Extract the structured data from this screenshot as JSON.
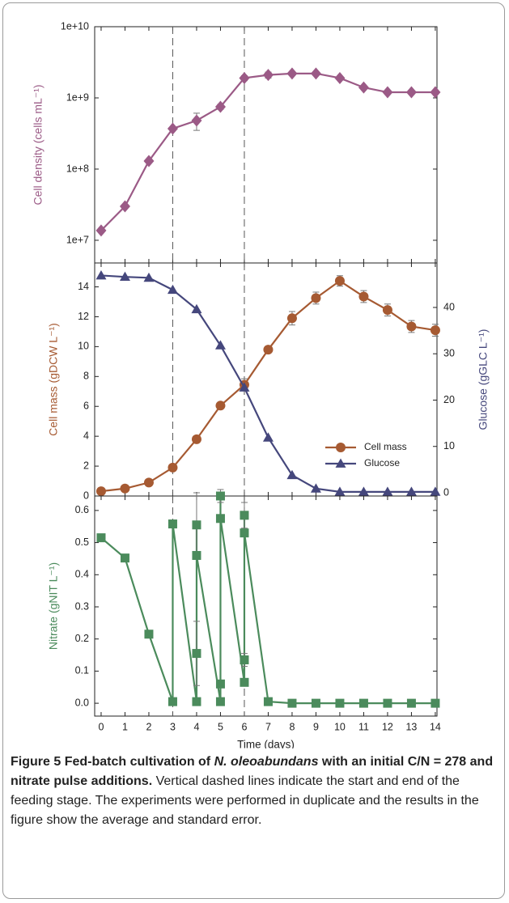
{
  "chart_data": [
    {
      "type": "line",
      "log_y": true,
      "ylabel": "Cell density (cells mL⁻¹)",
      "xlim": [
        -0.27,
        14.07
      ],
      "xticks": [
        0,
        1,
        2,
        3,
        4,
        5,
        6,
        7,
        8,
        9,
        10,
        11,
        12,
        13,
        14
      ],
      "ylim": [
        4800000,
        10000000000
      ],
      "yticks": [
        {
          "value": 10000000,
          "label": "1e+7"
        },
        {
          "value": 100000000,
          "label": "1e+8"
        },
        {
          "value": 1000000000,
          "label": "1e+9"
        },
        {
          "value": 10000000000,
          "label": "1e+10"
        }
      ],
      "vlines": [
        3,
        6
      ],
      "x": [
        0,
        1,
        2,
        3,
        4,
        5,
        6,
        7,
        8,
        9,
        10,
        11,
        12,
        13,
        14
      ],
      "series": [
        {
          "name": "Cell density",
          "color": "#9b5a86",
          "marker": "diamond",
          "values": [
            13700000,
            30000000,
            130000000,
            370000000,
            480000000,
            750000000,
            1900000000,
            2100000000,
            2200000000,
            2200000000,
            1900000000,
            1400000000,
            1200000000,
            1200000000,
            1200000000
          ],
          "errors": [
            null,
            null,
            null,
            null,
            130000000,
            60000000,
            150000000,
            200000000,
            null,
            null,
            null,
            null,
            null,
            null,
            null
          ]
        }
      ]
    },
    {
      "type": "line",
      "ylabel": "Cell mass (gDCW L⁻¹)",
      "y2label": "Glucose (gGLC L⁻¹)",
      "xlim": [
        -0.27,
        14.07
      ],
      "xticks": [
        0,
        1,
        2,
        3,
        4,
        5,
        6,
        7,
        8,
        9,
        10,
        11,
        12,
        13,
        14
      ],
      "ylim": [
        0,
        15.6
      ],
      "yticks": [
        0,
        2,
        4,
        6,
        8,
        10,
        12,
        14
      ],
      "y2lim": [
        -0.7,
        49.6
      ],
      "y2ticks": [
        0,
        10,
        20,
        30,
        40
      ],
      "vlines": [
        3,
        6
      ],
      "legend": "lower right",
      "x": [
        0,
        1,
        2,
        3,
        4,
        5,
        6,
        7,
        8,
        9,
        10,
        11,
        12,
        13,
        14
      ],
      "series": [
        {
          "name": "Cell mass",
          "color": "#a65a32",
          "marker": "circle",
          "values": [
            0.32,
            0.5,
            0.9,
            1.9,
            3.8,
            6.05,
            7.45,
            9.8,
            11.9,
            13.25,
            14.4,
            13.35,
            12.45,
            11.35,
            11.1
          ],
          "errors": [
            null,
            null,
            null,
            null,
            null,
            null,
            0.4,
            null,
            0.45,
            0.4,
            0.35,
            0.4,
            0.4,
            0.4,
            0.4
          ]
        },
        {
          "name": "Glucose",
          "color": "#45477c",
          "marker": "triangle",
          "axis": "y2",
          "values": [
            46.9,
            46.6,
            46.4,
            43.8,
            39.6,
            31.8,
            22.7,
            11.9,
            3.8,
            0.9,
            0.2,
            0.2,
            0.2,
            0.2,
            0.2
          ],
          "errors": [
            null,
            null,
            null,
            null,
            null,
            null,
            null,
            null,
            null,
            null,
            null,
            null,
            null,
            null,
            null
          ]
        }
      ]
    },
    {
      "type": "line",
      "ylabel": "Nitrate (gNIT L⁻¹)",
      "xlabel": "Time (days)",
      "xlim": [
        -0.27,
        14.07
      ],
      "xticks": [
        0,
        1,
        2,
        3,
        4,
        5,
        6,
        7,
        8,
        9,
        10,
        11,
        12,
        13,
        14
      ],
      "ylim": [
        -0.04,
        0.645
      ],
      "yticks": [
        {
          "value": 0,
          "label": "0.0"
        },
        0.1,
        0.2,
        0.3,
        0.4,
        0.5,
        0.6
      ],
      "vlines": [
        3,
        6
      ],
      "x": [
        0,
        1,
        2,
        3,
        3,
        4,
        4,
        4,
        4,
        5,
        5,
        5,
        5,
        6,
        6,
        6,
        6,
        7,
        8,
        9,
        10,
        11,
        12,
        13,
        14
      ],
      "series": [
        {
          "name": "Nitrate",
          "color": "#4b8b5c",
          "marker": "square",
          "values": [
            0.515,
            0.452,
            0.215,
            0.005,
            0.558,
            0.005,
            0.155,
            0.555,
            0.46,
            0.005,
            0.06,
            0.645,
            0.575,
            0.065,
            0.135,
            0.585,
            0.53,
            0.005,
            0,
            0,
            0,
            0,
            0,
            0,
            0
          ],
          "errors": [
            null,
            null,
            null,
            null,
            null,
            null,
            0.1,
            0.1,
            null,
            null,
            null,
            0.02,
            null,
            null,
            0.02,
            0.04,
            null,
            null,
            null,
            null,
            null,
            null,
            null,
            null,
            null
          ]
        }
      ]
    }
  ],
  "caption": {
    "label": "Figure 5",
    "title_start": "Fed-batch cultivation of ",
    "title_italic": "N. oleoabundans",
    "title_end": " with an initial C/N = 278 and nitrate pulse additions.",
    "text": "Vertical dashed lines indicate the start and end of the feeding stage. The experiments were performed in duplicate and the results in the figure show the average and standard error."
  }
}
